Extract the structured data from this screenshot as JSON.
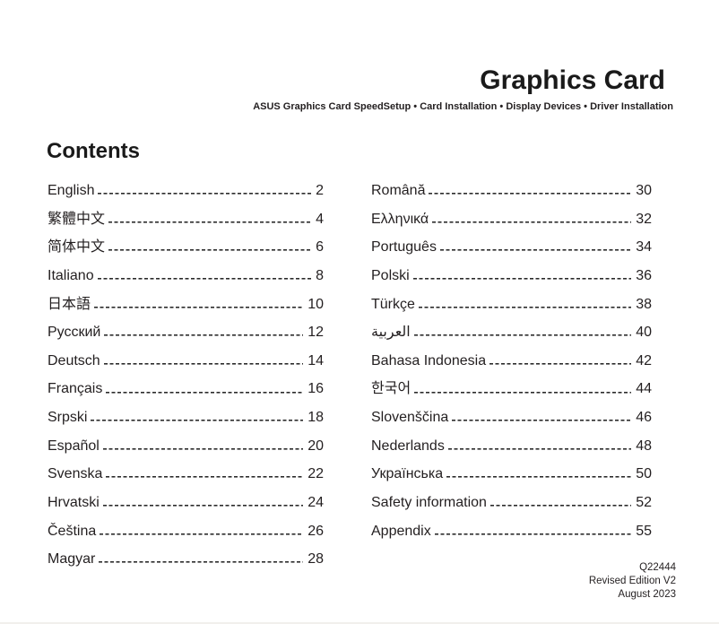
{
  "header": {
    "title": "Graphics Card",
    "subtitle": "ASUS Graphics Card SpeedSetup • Card Installation • Display Devices • Driver Installation"
  },
  "contents": {
    "heading": "Contents",
    "left": [
      {
        "label": "English",
        "page": "2"
      },
      {
        "label": "繁體中文",
        "page": "4"
      },
      {
        "label": "简体中文",
        "page": "6"
      },
      {
        "label": "Italiano",
        "page": "8"
      },
      {
        "label": "日本語",
        "page": "10"
      },
      {
        "label": "Русский",
        "page": "12"
      },
      {
        "label": "Deutsch",
        "page": "14"
      },
      {
        "label": "Français",
        "page": "16"
      },
      {
        "label": "Srpski",
        "page": "18"
      },
      {
        "label": "Español",
        "page": "20"
      },
      {
        "label": "Svenska",
        "page": "22"
      },
      {
        "label": "Hrvatski",
        "page": "24"
      },
      {
        "label": "Čeština",
        "page": "26"
      },
      {
        "label": "Magyar",
        "page": "28"
      }
    ],
    "right": [
      {
        "label": "Română",
        "page": "30"
      },
      {
        "label": "Ελληνικά",
        "page": "32"
      },
      {
        "label": "Português",
        "page": "34"
      },
      {
        "label": "Polski",
        "page": "36"
      },
      {
        "label": "Türkçe",
        "page": "38"
      },
      {
        "label": "العربية",
        "page": "40"
      },
      {
        "label": "Bahasa Indonesia",
        "page": "42"
      },
      {
        "label": "한국어",
        "page": "44"
      },
      {
        "label": "Slovenščina",
        "page": "46"
      },
      {
        "label": "Nederlands",
        "page": "48"
      },
      {
        "label": "Українська",
        "page": "50"
      },
      {
        "label": "Safety information",
        "page": "52"
      },
      {
        "label": "Appendix",
        "page": "55"
      }
    ]
  },
  "footer": {
    "part_number": "Q22444",
    "edition": "Revised Edition V2",
    "date": "August 2023"
  }
}
